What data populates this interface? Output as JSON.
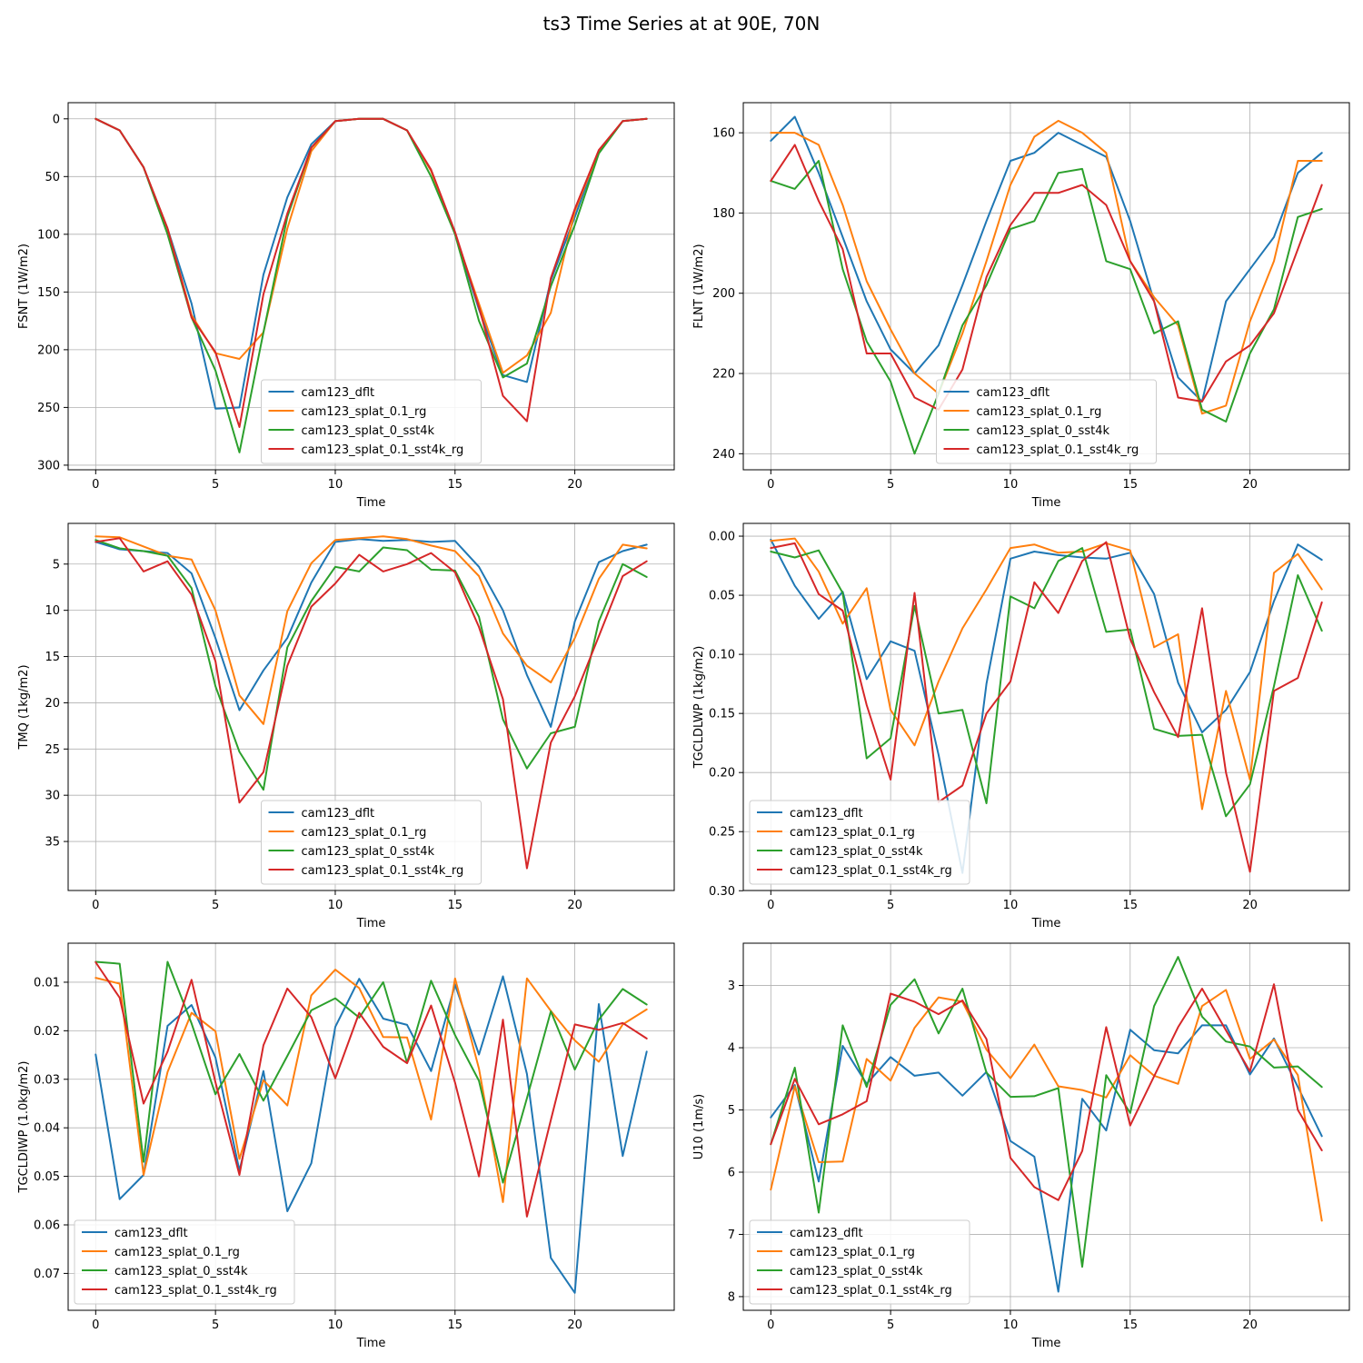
{
  "figure": {
    "title": "ts3 Time Series at at 90E, 70N"
  },
  "colors": {
    "cam123_dflt": "#1f77b4",
    "cam123_splat_0.1_rg": "#ff7f0e",
    "cam123_splat_0_sst4k": "#2ca02c",
    "cam123_splat_0.1_sst4k_rg": "#d62728",
    "grid": "#b0b0b0"
  },
  "chart_data": [
    {
      "type": "line",
      "xlabel": "Time",
      "ylabel": "FSNT (1W/m2)",
      "xlim": [
        -1.15,
        24.15
      ],
      "ylim": [
        -14,
        304
      ],
      "y_inverted": true,
      "xticks": [
        0,
        5,
        10,
        15,
        20
      ],
      "yticks": [
        0,
        50,
        100,
        150,
        200,
        250,
        300
      ],
      "yticklabels": [
        "0",
        "50",
        "100",
        "150",
        "200",
        "250",
        "300"
      ],
      "grid": true,
      "legend_loc": "lower center",
      "x": [
        0,
        1,
        2,
        3,
        4,
        5,
        6,
        7,
        8,
        9,
        10,
        11,
        12,
        13,
        14,
        15,
        16,
        17,
        18,
        19,
        20,
        21,
        22,
        23
      ],
      "series": [
        {
          "name": "cam123_dflt",
          "values": [
            0,
            10,
            42,
            95,
            160,
            251,
            250,
            135,
            68,
            22,
            2,
            0,
            0,
            10,
            45,
            100,
            165,
            222,
            228,
            140,
            85,
            28,
            2,
            0
          ]
        },
        {
          "name": "cam123_splat_0.1_rg",
          "values": [
            0,
            10,
            42,
            95,
            170,
            203,
            208,
            185,
            95,
            28,
            2,
            0,
            0,
            10,
            45,
            100,
            160,
            220,
            205,
            168,
            80,
            28,
            2,
            0
          ]
        },
        {
          "name": "cam123_splat_0_sst4k",
          "values": [
            0,
            10,
            42,
            100,
            172,
            218,
            289,
            185,
            85,
            25,
            2,
            0,
            0,
            10,
            50,
            100,
            175,
            224,
            212,
            145,
            92,
            30,
            2,
            0
          ]
        },
        {
          "name": "cam123_splat_0.1_sst4k_rg",
          "values": [
            0,
            10,
            42,
            95,
            172,
            202,
            267,
            152,
            82,
            25,
            2,
            0,
            0,
            10,
            44,
            98,
            163,
            240,
            262,
            138,
            78,
            27,
            2,
            0
          ]
        }
      ]
    },
    {
      "type": "line",
      "xlabel": "Time",
      "ylabel": "FLNT (1W/m2)",
      "xlim": [
        -1.15,
        24.15
      ],
      "ylim": [
        152.5,
        244
      ],
      "y_inverted": true,
      "xticks": [
        0,
        5,
        10,
        15,
        20
      ],
      "yticks": [
        160,
        180,
        200,
        220,
        240
      ],
      "yticklabels": [
        "160",
        "180",
        "200",
        "220",
        "240"
      ],
      "grid": true,
      "legend_loc": "lower center",
      "x": [
        0,
        1,
        2,
        3,
        4,
        5,
        6,
        7,
        8,
        9,
        10,
        11,
        12,
        13,
        14,
        15,
        16,
        17,
        18,
        19,
        20,
        21,
        22,
        23
      ],
      "series": [
        {
          "name": "cam123_dflt",
          "values": [
            162,
            156,
            170,
            186,
            202,
            214,
            220,
            213,
            198,
            182,
            167,
            165,
            160,
            163,
            166,
            182,
            202,
            221,
            227,
            202,
            194,
            186,
            170,
            165
          ]
        },
        {
          "name": "cam123_splat_0.1_rg",
          "values": [
            160,
            160,
            163,
            178,
            197,
            209,
            220,
            225,
            210,
            192,
            173,
            161,
            157,
            160,
            165,
            192,
            201,
            208,
            230,
            228,
            207,
            192,
            167,
            167
          ]
        },
        {
          "name": "cam123_splat_0_sst4k",
          "values": [
            172,
            174,
            167,
            194,
            212,
            222,
            240,
            225,
            208,
            198,
            184,
            182,
            170,
            169,
            192,
            194,
            210,
            207,
            229,
            232,
            215,
            204,
            181,
            179
          ]
        },
        {
          "name": "cam123_splat_0.1_sst4k_rg",
          "values": [
            172,
            163,
            177,
            189,
            215,
            215,
            226,
            229,
            219,
            196,
            183,
            175,
            175,
            173,
            178,
            192,
            202,
            226,
            227,
            217,
            213,
            205,
            189,
            173
          ]
        }
      ]
    },
    {
      "type": "line",
      "xlabel": "Time",
      "ylabel": "TMQ (1kg/m2)",
      "xlim": [
        -1.15,
        24.15
      ],
      "ylim": [
        0.6,
        40.3
      ],
      "y_inverted": true,
      "xticks": [
        0,
        5,
        10,
        15,
        20
      ],
      "yticks": [
        5,
        10,
        15,
        20,
        25,
        30,
        35
      ],
      "yticklabels": [
        "5",
        "10",
        "15",
        "20",
        "25",
        "30",
        "35"
      ],
      "grid": true,
      "legend_loc": "lower center",
      "x": [
        0,
        1,
        2,
        3,
        4,
        5,
        6,
        7,
        8,
        9,
        10,
        11,
        12,
        13,
        14,
        15,
        16,
        17,
        18,
        19,
        20,
        21,
        22,
        23
      ],
      "series": [
        {
          "name": "cam123_dflt",
          "values": [
            2.6,
            3.4,
            3.6,
            3.8,
            6.0,
            13.0,
            20.8,
            16.5,
            13.0,
            7.0,
            2.6,
            2.3,
            2.5,
            2.4,
            2.6,
            2.5,
            5.3,
            10.0,
            17.0,
            22.6,
            11.2,
            4.8,
            3.6,
            2.9
          ]
        },
        {
          "name": "cam123_splat_0.1_rg",
          "values": [
            2.0,
            2.1,
            3.1,
            4.1,
            4.5,
            10.0,
            19.2,
            22.3,
            10.1,
            4.9,
            2.4,
            2.2,
            2.0,
            2.3,
            3.0,
            3.6,
            6.3,
            12.5,
            16.0,
            17.8,
            13.0,
            6.6,
            2.9,
            3.3
          ]
        },
        {
          "name": "cam123_splat_0_sst4k",
          "values": [
            2.4,
            3.3,
            3.6,
            4.1,
            7.6,
            18.2,
            25.3,
            29.4,
            14.0,
            9.0,
            5.3,
            5.8,
            3.2,
            3.5,
            5.6,
            5.7,
            10.7,
            21.8,
            27.1,
            23.3,
            22.6,
            11.2,
            5.0,
            6.4
          ]
        },
        {
          "name": "cam123_splat_0.1_sst4k_rg",
          "values": [
            2.6,
            2.2,
            5.8,
            4.7,
            8.3,
            15.5,
            30.8,
            27.5,
            16.0,
            9.6,
            7.1,
            4.0,
            5.8,
            5.0,
            3.8,
            5.9,
            11.8,
            19.6,
            37.9,
            24.3,
            19.3,
            12.8,
            6.3,
            4.7
          ]
        }
      ]
    },
    {
      "type": "line",
      "xlabel": "Time",
      "ylabel": "TGCLDLWP (1kg/m2)",
      "xlim": [
        -1.15,
        24.15
      ],
      "ylim": [
        -0.0108,
        0.2998
      ],
      "y_inverted": true,
      "xticks": [
        0,
        5,
        10,
        15,
        20
      ],
      "yticks": [
        0,
        0.05,
        0.1,
        0.15,
        0.2,
        0.25,
        0.3
      ],
      "yticklabels": [
        "0.00",
        "0.05",
        "0.10",
        "0.15",
        "0.20",
        "0.25",
        "0.30"
      ],
      "grid": true,
      "legend_loc": "lower left",
      "x": [
        0,
        1,
        2,
        3,
        4,
        5,
        6,
        7,
        8,
        9,
        10,
        11,
        12,
        13,
        14,
        15,
        16,
        17,
        18,
        19,
        20,
        21,
        22,
        23
      ],
      "series": [
        {
          "name": "cam123_dflt",
          "values": [
            0.003,
            0.042,
            0.07,
            0.047,
            0.121,
            0.089,
            0.097,
            0.185,
            0.285,
            0.125,
            0.019,
            0.013,
            0.016,
            0.018,
            0.019,
            0.014,
            0.049,
            0.124,
            0.166,
            0.147,
            0.115,
            0.055,
            0.007,
            0.02
          ]
        },
        {
          "name": "cam123_splat_0.1_rg",
          "values": [
            0.004,
            0.002,
            0.03,
            0.074,
            0.044,
            0.147,
            0.177,
            0.123,
            0.078,
            0.045,
            0.01,
            0.007,
            0.014,
            0.013,
            0.006,
            0.012,
            0.094,
            0.083,
            0.231,
            0.131,
            0.206,
            0.031,
            0.015,
            0.045
          ]
        },
        {
          "name": "cam123_splat_0_sst4k",
          "values": [
            0.013,
            0.018,
            0.012,
            0.048,
            0.188,
            0.171,
            0.059,
            0.15,
            0.147,
            0.226,
            0.051,
            0.061,
            0.021,
            0.01,
            0.081,
            0.079,
            0.163,
            0.169,
            0.168,
            0.237,
            0.21,
            0.127,
            0.033,
            0.08
          ]
        },
        {
          "name": "cam123_splat_0.1_sst4k_rg",
          "values": [
            0.01,
            0.006,
            0.049,
            0.063,
            0.143,
            0.206,
            0.048,
            0.225,
            0.211,
            0.15,
            0.123,
            0.039,
            0.065,
            0.021,
            0.005,
            0.087,
            0.132,
            0.17,
            0.061,
            0.2,
            0.284,
            0.131,
            0.12,
            0.056
          ]
        }
      ]
    },
    {
      "type": "line",
      "xlabel": "Time",
      "ylabel": "TGCLDIWP (1.0kg/m2)",
      "xlim": [
        -1.15,
        24.15
      ],
      "ylim": [
        0.00196,
        0.0776
      ],
      "y_inverted": true,
      "xticks": [
        0,
        5,
        10,
        15,
        20
      ],
      "yticks": [
        0.01,
        0.02,
        0.03,
        0.04,
        0.05,
        0.06,
        0.07
      ],
      "yticklabels": [
        "0.01",
        "0.02",
        "0.03",
        "0.04",
        "0.05",
        "0.06",
        "0.07"
      ],
      "grid": true,
      "legend_loc": "lower left",
      "x": [
        0,
        1,
        2,
        3,
        4,
        5,
        6,
        7,
        8,
        9,
        10,
        11,
        12,
        13,
        14,
        15,
        16,
        17,
        18,
        19,
        20,
        21,
        22,
        23
      ],
      "series": [
        {
          "name": "cam123_dflt",
          "values": [
            0.0249,
            0.0547,
            0.0497,
            0.019,
            0.0147,
            0.0255,
            0.0488,
            0.0283,
            0.0572,
            0.0473,
            0.0192,
            0.0093,
            0.0175,
            0.0188,
            0.0283,
            0.0105,
            0.0249,
            0.0088,
            0.0289,
            0.0668,
            0.074,
            0.0145,
            0.0458,
            0.0243
          ]
        },
        {
          "name": "cam123_splat_0.1_rg",
          "values": [
            0.0091,
            0.0103,
            0.0497,
            0.0285,
            0.0163,
            0.0201,
            0.0464,
            0.0302,
            0.0354,
            0.0127,
            0.0074,
            0.0112,
            0.0213,
            0.0214,
            0.0383,
            0.0092,
            0.0278,
            0.0553,
            0.0092,
            0.0159,
            0.022,
            0.0264,
            0.0187,
            0.0156
          ]
        },
        {
          "name": "cam123_splat_0_sst4k",
          "values": [
            0.0058,
            0.0062,
            0.047,
            0.0058,
            0.0185,
            0.0331,
            0.0248,
            0.0344,
            0.0252,
            0.0158,
            0.0133,
            0.0173,
            0.01,
            0.0266,
            0.0097,
            0.0209,
            0.0303,
            0.0513,
            0.0339,
            0.016,
            0.028,
            0.0177,
            0.0114,
            0.0146
          ]
        },
        {
          "name": "cam123_splat_0.1_sst4k_rg",
          "values": [
            0.0059,
            0.0132,
            0.035,
            0.0243,
            0.0095,
            0.0306,
            0.0497,
            0.023,
            0.0113,
            0.0172,
            0.0298,
            0.0163,
            0.0233,
            0.0267,
            0.0148,
            0.0307,
            0.05,
            0.0177,
            0.0583,
            0.0384,
            0.0187,
            0.0198,
            0.0184,
            0.0216
          ]
        }
      ]
    },
    {
      "type": "line",
      "xlabel": "Time",
      "ylabel": "U10 (1m/s)",
      "xlim": [
        -1.15,
        24.15
      ],
      "ylim": [
        2.32,
        8.22
      ],
      "y_inverted": true,
      "xticks": [
        0,
        5,
        10,
        15,
        20
      ],
      "yticks": [
        3,
        4,
        5,
        6,
        7,
        8
      ],
      "yticklabels": [
        "3",
        "4",
        "5",
        "6",
        "7",
        "8"
      ],
      "grid": true,
      "legend_loc": "lower left",
      "x": [
        0,
        1,
        2,
        3,
        4,
        5,
        6,
        7,
        8,
        9,
        10,
        11,
        12,
        13,
        14,
        15,
        16,
        17,
        18,
        19,
        20,
        21,
        22,
        23
      ],
      "series": [
        {
          "name": "cam123_dflt",
          "values": [
            5.12,
            4.6,
            6.15,
            3.97,
            4.58,
            4.15,
            4.45,
            4.4,
            4.77,
            4.39,
            5.5,
            5.75,
            7.92,
            4.82,
            5.33,
            3.71,
            4.04,
            4.09,
            3.64,
            3.64,
            4.43,
            3.85,
            4.63,
            5.42
          ]
        },
        {
          "name": "cam123_splat_0.1_rg",
          "values": [
            6.28,
            4.62,
            5.84,
            5.83,
            4.18,
            4.53,
            3.68,
            3.19,
            3.26,
            4.03,
            4.49,
            3.95,
            4.62,
            4.68,
            4.8,
            4.12,
            4.45,
            4.58,
            3.33,
            3.07,
            4.18,
            3.87,
            4.44,
            6.78
          ]
        },
        {
          "name": "cam123_splat_0_sst4k",
          "values": [
            5.55,
            4.32,
            6.65,
            3.64,
            4.63,
            3.31,
            2.9,
            3.77,
            3.05,
            4.4,
            4.79,
            4.78,
            4.65,
            7.52,
            4.44,
            5.05,
            3.33,
            2.54,
            3.5,
            3.9,
            3.98,
            4.32,
            4.3,
            4.63
          ]
        },
        {
          "name": "cam123_splat_0.1_sst4k_rg",
          "values": [
            5.55,
            4.5,
            5.23,
            5.07,
            4.86,
            3.13,
            3.26,
            3.46,
            3.24,
            3.86,
            5.77,
            6.24,
            6.45,
            5.66,
            3.67,
            5.25,
            4.46,
            3.67,
            3.05,
            3.72,
            4.38,
            2.98,
            5.0,
            5.65
          ]
        }
      ]
    }
  ]
}
